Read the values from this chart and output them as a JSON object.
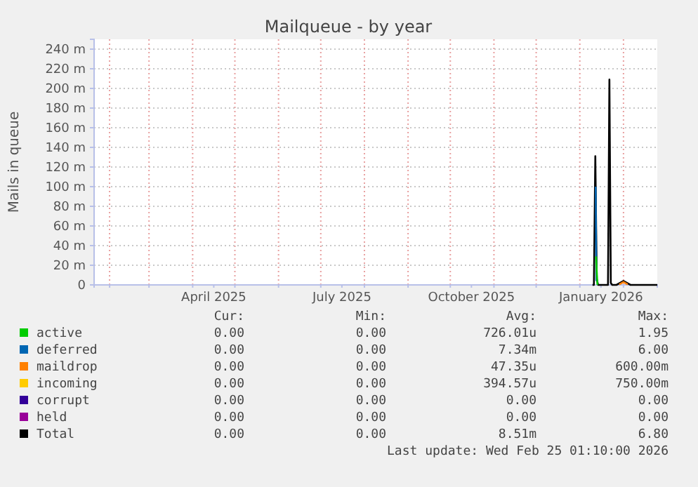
{
  "chart_data": {
    "type": "line",
    "title": "Mailqueue - by year",
    "ylabel": "Mails in queue",
    "x": [
      "2026-01-10",
      "2026-01-11",
      "2026-01-12",
      "2026-01-13",
      "2026-01-14",
      "2026-01-20",
      "2026-01-21",
      "2026-01-22",
      "2026-01-23",
      "2026-01-24",
      "2026-01-27",
      "2026-02-01",
      "2026-02-06",
      "2026-02-25"
    ],
    "series": [
      {
        "name": "active",
        "color": "#00cc00",
        "x": [
          "2026-01-12T12:00",
          "2026-01-13T12:00"
        ],
        "values": [
          29,
          0
        ]
      },
      {
        "name": "deferred",
        "color": "#0066b3",
        "x": [
          "2026-01-12T06:00",
          "2026-01-12T18:00"
        ],
        "values": [
          100,
          4
        ]
      },
      {
        "name": "maildrop",
        "color": "#ff8000",
        "x": [
          "2026-01-29",
          "2026-02-01",
          "2026-02-04"
        ],
        "values": [
          0.5,
          3,
          0.5
        ]
      },
      {
        "name": "incoming",
        "color": "#ffcc00",
        "values": [
          null,
          null,
          null,
          null,
          null,
          null,
          null,
          null,
          null,
          null,
          null,
          null,
          null,
          null
        ]
      },
      {
        "name": "corrupt",
        "color": "#330099",
        "values": [
          null,
          null,
          null,
          null,
          null,
          null,
          null,
          null,
          null,
          null,
          null,
          null,
          null,
          null
        ]
      },
      {
        "name": "held",
        "color": "#990099",
        "values": [
          null,
          null,
          null,
          null,
          null,
          null,
          null,
          null,
          null,
          null,
          null,
          null,
          null,
          null
        ]
      },
      {
        "name": "Total",
        "color": "#000000",
        "values": [
          0,
          0,
          131,
          6,
          0,
          0,
          0,
          209,
          2,
          0,
          0,
          4,
          0,
          0
        ]
      }
    ],
    "xlim": [
      "2025-01-21",
      "2026-02-25"
    ],
    "xticks": [
      {
        "value": "2025-02-01",
        "label": null
      },
      {
        "value": "2025-03-01",
        "label": null
      },
      {
        "value": "2025-04-01",
        "label": null
      },
      {
        "value": "2025-04-16",
        "label": "April 2025"
      },
      {
        "value": "2025-05-01",
        "label": null
      },
      {
        "value": "2025-06-01",
        "label": null
      },
      {
        "value": "2025-07-01",
        "label": null
      },
      {
        "value": "2025-07-16",
        "label": "July 2025"
      },
      {
        "value": "2025-08-01",
        "label": null
      },
      {
        "value": "2025-09-01",
        "label": null
      },
      {
        "value": "2025-10-01",
        "label": null
      },
      {
        "value": "2025-10-16",
        "label": "October 2025"
      },
      {
        "value": "2025-11-01",
        "label": null
      },
      {
        "value": "2025-12-01",
        "label": null
      },
      {
        "value": "2026-01-01",
        "label": null
      },
      {
        "value": "2026-01-16",
        "label": "January 2026"
      },
      {
        "value": "2026-02-01",
        "label": null
      }
    ],
    "ylim": [
      0,
      250
    ],
    "yticks": [
      0,
      {
        "value": 20,
        "label": "20 m"
      },
      {
        "value": 40,
        "label": "40 m"
      },
      {
        "value": 60,
        "label": "60 m"
      },
      {
        "value": 80,
        "label": "80 m"
      },
      {
        "value": 100,
        "label": "100 m"
      },
      {
        "value": 120,
        "label": "120 m"
      },
      {
        "value": 140,
        "label": "140 m"
      },
      {
        "value": 160,
        "label": "160 m"
      },
      {
        "value": 180,
        "label": "180 m"
      },
      {
        "value": 200,
        "label": "200 m"
      },
      {
        "value": 220,
        "label": "220 m"
      },
      {
        "value": 240,
        "label": "240 m"
      }
    ],
    "grid": true,
    "legend": "bottom",
    "marker": "none",
    "line_style": "solid",
    "annotations": [
      "Cur:",
      "Min:",
      "Avg:",
      "Max:",
      "0.00",
      "0.00",
      "726.01u",
      "1.95",
      "0.00",
      "0.00",
      "7.34m",
      "6.00",
      "0.00",
      "0.00",
      "47.35u",
      "600.00m",
      "0.00",
      "0.00",
      "394.57u",
      "750.00m",
      "0.00",
      "0.00",
      "0.00",
      "0.00",
      "0.00",
      "0.00",
      "0.00",
      "0.00",
      "0.00",
      "0.00",
      "8.51m",
      "6.80",
      "Last update: Wed Feb 25 01:10:00 2026"
    ]
  }
}
